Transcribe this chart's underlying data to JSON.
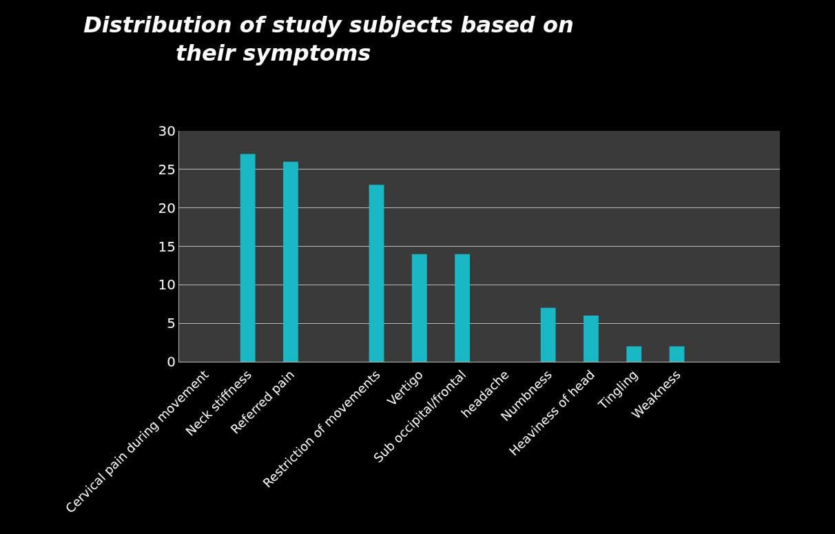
{
  "chart_data": {
    "type": "bar",
    "title": "Distribution of study subjects based on\n            their symptoms",
    "categories": [
      "Cervical pain during movement",
      "Neck stiffness",
      "Referred pain",
      null,
      "Restriction of movements",
      "Vertigo",
      "Sub occipital/frontal",
      "headache",
      "Numbness",
      "Heaviness of head",
      "Tingling",
      "Weakness"
    ],
    "values": [
      0,
      27,
      26,
      null,
      23,
      14,
      14,
      null,
      7,
      6,
      2,
      2
    ],
    "color": "#1ab8c4",
    "ylim": [
      0,
      30
    ],
    "yticks": [
      0,
      5,
      10,
      15,
      20,
      25,
      30
    ],
    "grid": "y"
  }
}
